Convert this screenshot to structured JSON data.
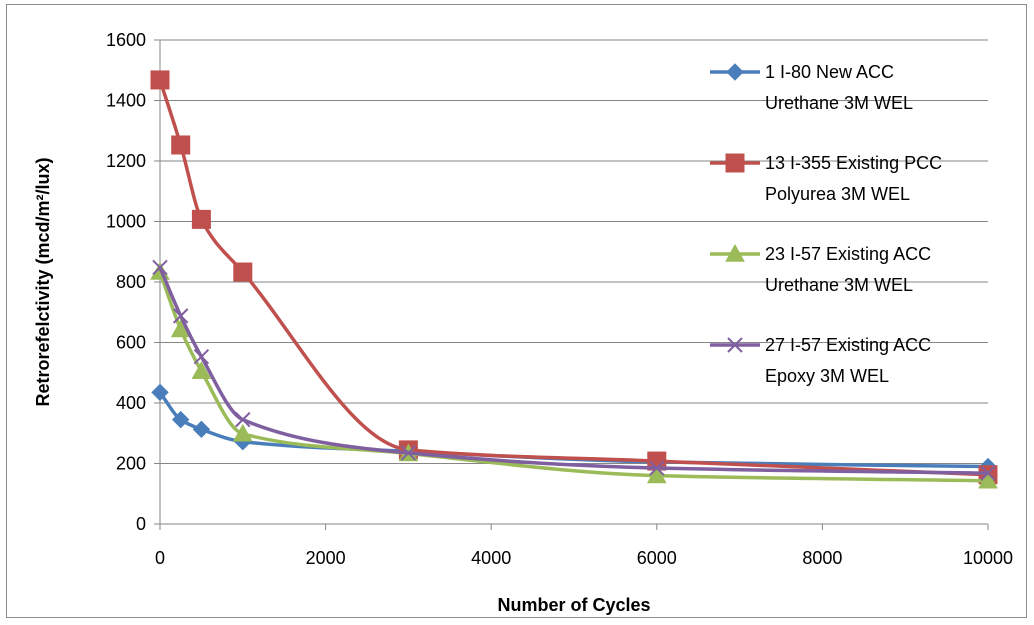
{
  "chart_data": {
    "type": "line",
    "title": "",
    "xlabel": "Number of Cycles",
    "ylabel": "Retrorefelctivity (mcd/m²/lux)",
    "xlim": [
      0,
      10000
    ],
    "ylim": [
      0,
      1600
    ],
    "x_ticks": [
      0,
      2000,
      4000,
      6000,
      8000,
      10000
    ],
    "y_ticks": [
      0,
      200,
      400,
      600,
      800,
      1000,
      1200,
      1400,
      1600
    ],
    "grid": "horizontal",
    "legend_position": "right",
    "series": [
      {
        "name_lines": [
          "1 I-80 New ACC",
          "Urethane 3M WEL"
        ],
        "color": "#4a7ebb",
        "marker": "diamond",
        "points": [
          [
            0,
            435
          ],
          [
            250,
            345
          ],
          [
            500,
            313
          ],
          [
            1000,
            272
          ],
          [
            3000,
            240
          ],
          [
            6000,
            205
          ],
          [
            10000,
            190
          ]
        ]
      },
      {
        "name_lines": [
          "13 I-355 Existing PCC",
          "Polyurea 3M WEL"
        ],
        "color": "#c0504d",
        "marker": "square",
        "points": [
          [
            0,
            1468
          ],
          [
            250,
            1253
          ],
          [
            500,
            1007
          ],
          [
            1000,
            833
          ],
          [
            3000,
            245
          ],
          [
            6000,
            208
          ],
          [
            10000,
            163
          ]
        ]
      },
      {
        "name_lines": [
          "23 I-57 Existing ACC",
          "Urethane 3M WEL"
        ],
        "color": "#9bbb59",
        "marker": "triangle",
        "points": [
          [
            0,
            833
          ],
          [
            250,
            643
          ],
          [
            500,
            505
          ],
          [
            1000,
            298
          ],
          [
            3000,
            233
          ],
          [
            6000,
            160
          ],
          [
            10000,
            143
          ]
        ]
      },
      {
        "name_lines": [
          "27 I-57 Existing ACC",
          "Epoxy 3M WEL"
        ],
        "color": "#7f5fa0",
        "marker": "x",
        "points": [
          [
            0,
            848
          ],
          [
            250,
            688
          ],
          [
            500,
            553
          ],
          [
            1000,
            345
          ],
          [
            3000,
            235
          ],
          [
            6000,
            185
          ],
          [
            10000,
            168
          ]
        ]
      }
    ]
  }
}
